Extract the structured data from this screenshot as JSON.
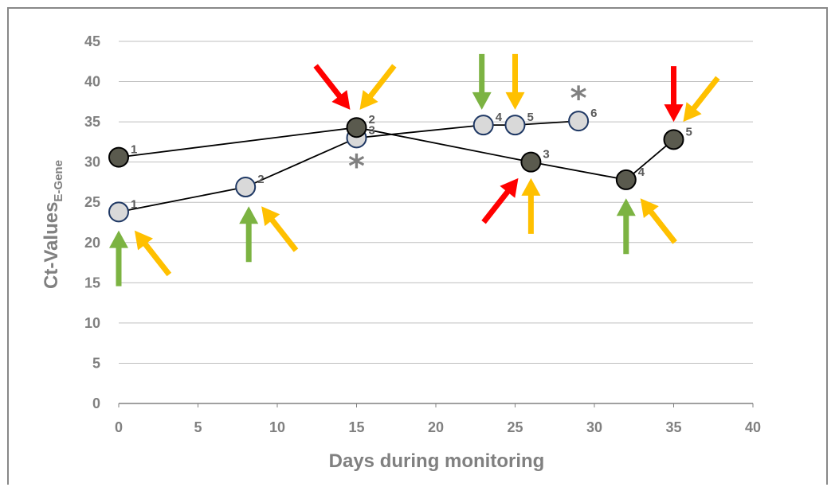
{
  "chart_data": {
    "type": "line",
    "xlabel": "Days during monitoring",
    "ylabel": "Ct-Values",
    "ylabel_subscript": "E-Gene",
    "xlim": [
      0,
      40
    ],
    "ylim": [
      0,
      45
    ],
    "x_ticks": [
      "0",
      "5",
      "10",
      "15",
      "20",
      "25",
      "30",
      "35",
      "40"
    ],
    "y_ticks": [
      "0",
      "5",
      "10",
      "15",
      "20",
      "25",
      "30",
      "35",
      "40",
      "45"
    ],
    "grid": "horizontal",
    "legend": "none",
    "series": [
      {
        "color": "#d9d9d9",
        "edge_color": "#1f3864",
        "points": [
          {
            "x": 0,
            "y": 23.8,
            "label": "1"
          },
          {
            "x": 8,
            "y": 26.9,
            "label": "2"
          },
          {
            "x": 15,
            "y": 33.0,
            "label": "3"
          },
          {
            "x": 23,
            "y": 34.6,
            "label": "4"
          },
          {
            "x": 25,
            "y": 34.6,
            "label": "5"
          },
          {
            "x": 29,
            "y": 35.1,
            "label": "6"
          }
        ]
      },
      {
        "color": "#5a5a4e",
        "edge_color": "#000000",
        "points": [
          {
            "x": 0,
            "y": 30.6,
            "label": "1"
          },
          {
            "x": 15,
            "y": 34.3,
            "label": "2"
          },
          {
            "x": 26,
            "y": 30.0,
            "label": "3"
          },
          {
            "x": 32,
            "y": 27.8,
            "label": "4"
          },
          {
            "x": 35,
            "y": 32.8,
            "label": "5"
          }
        ]
      }
    ],
    "asterisks": [
      {
        "x": 15,
        "y": 29.5
      },
      {
        "x": 29,
        "y": 38.0
      }
    ],
    "annotation_arrows": [
      {
        "color": "#7cb342",
        "direction": "up",
        "x": 0.0,
        "y": 21.5
      },
      {
        "color": "#ffc000",
        "direction": "up-left",
        "x": 1.0,
        "y": 21.5
      },
      {
        "color": "#7cb342",
        "direction": "up",
        "x": 8.2,
        "y": 24.5
      },
      {
        "color": "#ffc000",
        "direction": "up-left",
        "x": 9.0,
        "y": 24.5
      },
      {
        "color": "#ff0000",
        "direction": "down-right",
        "x": 14.6,
        "y": 36.5
      },
      {
        "color": "#ffc000",
        "direction": "down-left",
        "x": 15.2,
        "y": 36.5
      },
      {
        "color": "#7cb342",
        "direction": "down",
        "x": 22.9,
        "y": 36.5
      },
      {
        "color": "#ffc000",
        "direction": "down",
        "x": 25.0,
        "y": 36.5
      },
      {
        "color": "#ff0000",
        "direction": "up-right",
        "x": 25.2,
        "y": 28.0
      },
      {
        "color": "#ffc000",
        "direction": "up",
        "x": 26.0,
        "y": 28.0
      },
      {
        "color": "#7cb342",
        "direction": "up",
        "x": 32.0,
        "y": 25.5
      },
      {
        "color": "#ffc000",
        "direction": "up-left",
        "x": 32.9,
        "y": 25.5
      },
      {
        "color": "#ff0000",
        "direction": "down",
        "x": 35.0,
        "y": 35.0
      },
      {
        "color": "#ffc000",
        "direction": "down-left",
        "x": 35.6,
        "y": 35.0
      }
    ]
  }
}
